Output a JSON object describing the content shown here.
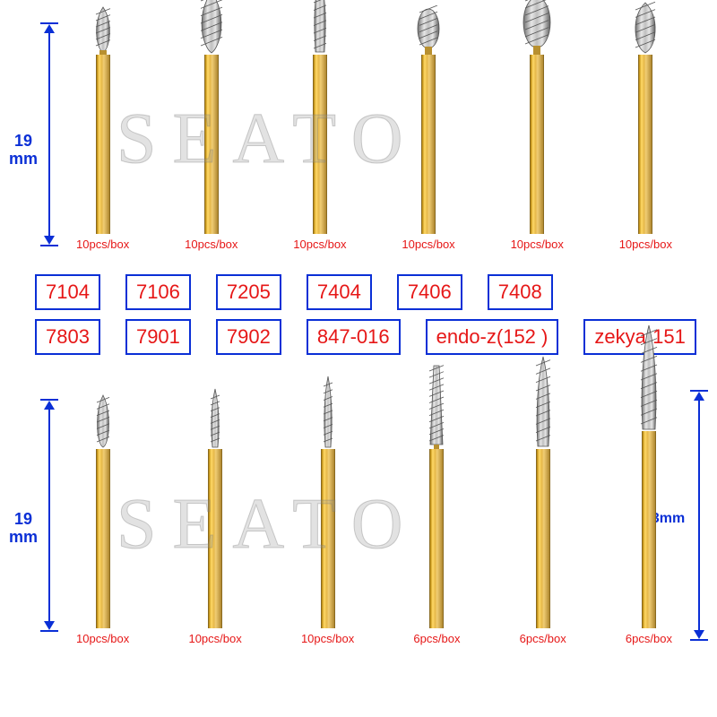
{
  "watermark_text": "SEATO",
  "dimensions": {
    "top_left": "19\nmm",
    "bottom_left": "19\nmm",
    "right": "23mm"
  },
  "top_burs": [
    {
      "pcs": "10pcs/box",
      "tip_type": "flame-small"
    },
    {
      "pcs": "10pcs/box",
      "tip_type": "flame-large"
    },
    {
      "pcs": "10pcs/box",
      "tip_type": "taper-long"
    },
    {
      "pcs": "10pcs/box",
      "tip_type": "egg"
    },
    {
      "pcs": "10pcs/box",
      "tip_type": "egg-large"
    },
    {
      "pcs": "10pcs/box",
      "tip_type": "bud"
    }
  ],
  "labels_row1": [
    "7104",
    "7106",
    "7205",
    "7404",
    "7406",
    "7408"
  ],
  "labels_row2": [
    "7803",
    "7901",
    "7902",
    "847-016",
    "endo-z(152 )",
    "zekya-151"
  ],
  "bottom_burs": [
    {
      "pcs": "10pcs/box",
      "tip_type": "flame-thin",
      "shank": "long"
    },
    {
      "pcs": "10pcs/box",
      "tip_type": "needle",
      "shank": "long"
    },
    {
      "pcs": "10pcs/box",
      "tip_type": "needle-long",
      "shank": "long"
    },
    {
      "pcs": "6pcs/box",
      "tip_type": "safe-end",
      "shank": "long"
    },
    {
      "pcs": "6pcs/box",
      "tip_type": "endo",
      "shank": "long"
    },
    {
      "pcs": "6pcs/box",
      "tip_type": "endo2",
      "shank": "longer"
    }
  ],
  "colors": {
    "blue": "#0a2fd6",
    "red": "#e61717",
    "steel_light": "#e0e0e0",
    "steel_mid": "#a8a8a8",
    "steel_dark": "#606060"
  }
}
